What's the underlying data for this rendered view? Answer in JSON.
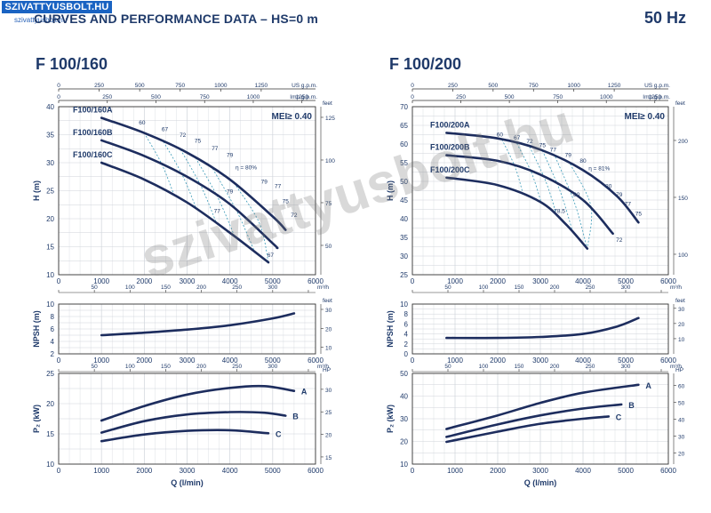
{
  "header": {
    "logo_text": "SZIVATTYUSBOLT.HU",
    "logo_sub": "szivattyusbolt.hu",
    "title": "CURVES AND PERFORMANCE DATA   –   HS=0 m",
    "frequency": "50 Hz",
    "watermark": "szivattyusbolt.hu"
  },
  "colors": {
    "curve": "#1d2d5e",
    "efficiency": "#3a9ab8",
    "grid": "#cfd3da",
    "axis": "#333333",
    "text": "#1f3a6a"
  },
  "chart_data": [
    {
      "type": "line",
      "model": "F 100/160",
      "units": {
        "gpm": "US g.p.m.",
        "imp": "Imp g.p.m.",
        "feet": "feet",
        "m3h": "m³/h",
        "hp": "HP",
        "q": "Q (l/min)",
        "h": "H (m)",
        "npsh": "NPSH (m)",
        "p2": "P₂ (kW)"
      },
      "x_ticks": [
        0,
        1000,
        2000,
        3000,
        4000,
        5000,
        6000
      ],
      "gpm_ticks": [
        0,
        250,
        500,
        750,
        1000,
        1250
      ],
      "imp_ticks": [
        0,
        250,
        500,
        750,
        1000,
        1250
      ],
      "m3h_ticks": [
        0,
        50,
        100,
        150,
        200,
        250,
        300,
        350
      ],
      "head": {
        "ylim": [
          10,
          40
        ],
        "yticks": [
          10,
          15,
          20,
          25,
          30,
          35,
          40
        ],
        "feet_ticks": [
          50,
          75,
          100,
          125
        ],
        "mei": "MEI≥ 0.40",
        "series": [
          {
            "name": "F100/160A",
            "x": [
              1000,
              2000,
              3000,
              4000,
              5000,
              5300
            ],
            "y": [
              38.0,
              35.3,
              31.8,
              27.0,
              20.4,
              18.0
            ]
          },
          {
            "name": "F100/160B",
            "x": [
              1000,
              2000,
              3000,
              4000,
              5000,
              5100
            ],
            "y": [
              34.0,
              31.2,
              27.5,
              22.6,
              15.6,
              14.8
            ]
          },
          {
            "name": "F100/160C",
            "x": [
              1000,
              2000,
              3000,
              4000,
              4900
            ],
            "y": [
              30.0,
              27.0,
              22.9,
              17.5,
              12.2
            ]
          }
        ],
        "efficiency_labels": [
          {
            "text": "60",
            "x": 1950,
            "y": 36.8
          },
          {
            "text": "67",
            "x": 2480,
            "y": 35.6
          },
          {
            "text": "72",
            "x": 2900,
            "y": 34.6
          },
          {
            "text": "75",
            "x": 3250,
            "y": 33.6
          },
          {
            "text": "77",
            "x": 3650,
            "y": 32.2
          },
          {
            "text": "79",
            "x": 4000,
            "y": 31.0
          },
          {
            "text": "η = 80%",
            "x": 4380,
            "y": 28.8
          },
          {
            "text": "79",
            "x": 4800,
            "y": 26.3
          },
          {
            "text": "77",
            "x": 5120,
            "y": 25.5
          },
          {
            "text": "75",
            "x": 5300,
            "y": 22.8
          },
          {
            "text": "72",
            "x": 5500,
            "y": 20.3
          },
          {
            "text": "79",
            "x": 4000,
            "y": 24.5
          },
          {
            "text": "77",
            "x": 3700,
            "y": 21.0
          },
          {
            "text": "67",
            "x": 4950,
            "y": 13.2
          }
        ]
      },
      "npsh": {
        "ylim": [
          2,
          10
        ],
        "yticks": [
          2,
          4,
          6,
          8,
          10
        ],
        "feet_ticks": [
          10,
          20,
          30
        ],
        "series": [
          {
            "name": "",
            "x": [
              1000,
              2000,
              3000,
              4000,
              5000,
              5500
            ],
            "y": [
              5.0,
              5.4,
              5.9,
              6.6,
              7.7,
              8.5
            ]
          }
        ]
      },
      "power": {
        "ylim": [
          10,
          25
        ],
        "yticks": [
          10,
          15,
          20,
          25
        ],
        "hp_ticks": [
          15,
          20,
          25,
          30
        ],
        "series": [
          {
            "name": "A",
            "x": [
              1000,
              2000,
              3000,
              4000,
              4800,
              5500
            ],
            "y": [
              17.2,
              19.6,
              21.5,
              22.6,
              22.9,
              22.1
            ]
          },
          {
            "name": "B",
            "x": [
              1000,
              2000,
              3000,
              4000,
              4800,
              5300
            ],
            "y": [
              15.2,
              17.1,
              18.2,
              18.6,
              18.5,
              18.0
            ]
          },
          {
            "name": "C",
            "x": [
              1000,
              2000,
              3000,
              4000,
              4900
            ],
            "y": [
              13.8,
              14.9,
              15.5,
              15.6,
              15.1
            ]
          }
        ]
      }
    },
    {
      "type": "line",
      "model": "F 100/200",
      "units": {
        "gpm": "US g.p.m.",
        "imp": "Imp g.p.m.",
        "feet": "feet",
        "m3h": "m³/h",
        "hp": "HP",
        "q": "Q (l/min)",
        "h": "H (m)",
        "npsh": "NPSH (m)",
        "p2": "P₂ (kW)"
      },
      "x_ticks": [
        0,
        1000,
        2000,
        3000,
        4000,
        5000,
        6000
      ],
      "gpm_ticks": [
        0,
        250,
        500,
        750,
        1000,
        1250
      ],
      "imp_ticks": [
        0,
        250,
        500,
        750,
        1000,
        1250
      ],
      "m3h_ticks": [
        0,
        50,
        100,
        150,
        200,
        250,
        300,
        350
      ],
      "head": {
        "ylim": [
          25,
          70
        ],
        "yticks": [
          25,
          30,
          35,
          40,
          45,
          50,
          55,
          60,
          65,
          70
        ],
        "feet_ticks": [
          100,
          150,
          200
        ],
        "mei": "MEI≥ 0.40",
        "series": [
          {
            "name": "F100/200A",
            "x": [
              800,
              2000,
              3000,
              4000,
              4800,
              5300
            ],
            "y": [
              63.0,
              61.5,
              58.5,
              53.0,
              46.0,
              39.0
            ]
          },
          {
            "name": "F100/200B",
            "x": [
              800,
              2000,
              3000,
              4000,
              4700
            ],
            "y": [
              57.0,
              55.5,
              51.8,
              45.0,
              36.0
            ]
          },
          {
            "name": "F100/200C",
            "x": [
              800,
              2000,
              3000,
              3600,
              4100
            ],
            "y": [
              51.0,
              49.0,
              44.5,
              38.5,
              32.0
            ]
          }
        ],
        "efficiency_labels": [
          {
            "text": "60",
            "x": 2050,
            "y": 62.0
          },
          {
            "text": "67",
            "x": 2450,
            "y": 61.2
          },
          {
            "text": "72",
            "x": 2750,
            "y": 60.2
          },
          {
            "text": "75",
            "x": 3050,
            "y": 59.2
          },
          {
            "text": "77",
            "x": 3300,
            "y": 58.0
          },
          {
            "text": "79",
            "x": 3650,
            "y": 56.5
          },
          {
            "text": "80",
            "x": 4000,
            "y": 55.0
          },
          {
            "text": "η = 81%",
            "x": 4380,
            "y": 53.0
          },
          {
            "text": "80",
            "x": 4600,
            "y": 48.2
          },
          {
            "text": "79",
            "x": 4850,
            "y": 46.0
          },
          {
            "text": "77",
            "x": 5050,
            "y": 43.5
          },
          {
            "text": "75",
            "x": 5300,
            "y": 40.8
          },
          {
            "text": "80",
            "x": 3850,
            "y": 46.0
          },
          {
            "text": "78.5",
            "x": 3450,
            "y": 41.5
          },
          {
            "text": "72",
            "x": 4850,
            "y": 33.8
          }
        ]
      },
      "npsh": {
        "ylim": [
          0,
          10
        ],
        "yticks": [
          0,
          2,
          4,
          6,
          8,
          10
        ],
        "feet_ticks": [
          10,
          20,
          30
        ],
        "series": [
          {
            "name": "",
            "x": [
              800,
              2000,
              3000,
              4000,
              4800,
              5300
            ],
            "y": [
              3.2,
              3.2,
              3.4,
              4.0,
              5.5,
              7.2
            ]
          }
        ]
      },
      "power": {
        "ylim": [
          10,
          50
        ],
        "yticks": [
          10,
          20,
          30,
          40,
          50
        ],
        "hp_ticks": [
          20,
          30,
          40,
          50,
          60
        ],
        "series": [
          {
            "name": "A",
            "x": [
              800,
              2000,
              3000,
              4000,
              5300
            ],
            "y": [
              25.5,
              31.5,
              37.0,
              41.5,
              45.0
            ]
          },
          {
            "name": "B",
            "x": [
              800,
              2000,
              3000,
              4000,
              4900
            ],
            "y": [
              22.0,
              27.5,
              31.5,
              34.5,
              36.3
            ]
          },
          {
            "name": "C",
            "x": [
              800,
              2000,
              3000,
              4000,
              4600
            ],
            "y": [
              19.8,
              24.3,
              27.8,
              30.0,
              31.0
            ]
          }
        ]
      }
    }
  ]
}
